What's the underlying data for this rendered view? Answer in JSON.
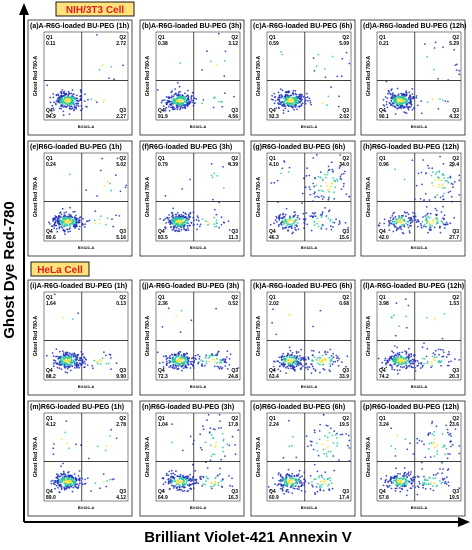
{
  "labels": {
    "y_axis": "Ghost Dye Red-780",
    "x_axis": "Brilliant Violet-421 Annexin V",
    "section_nih": "NIH/3T3 Cell",
    "section_hela": "HeLa Cell",
    "panel_ylabel": "Ghost Red 780-A",
    "panel_xlabel": "BV421-A"
  },
  "colors": {
    "accent_red": "#e11b22",
    "badge_fill": "#ffe37a",
    "badge_border": "#1a1a1a",
    "density_low": "#1f2fbf",
    "density_mid": "#27c8a0",
    "density_high": "#f5e33b"
  },
  "chart_data": [
    {
      "type": "scatter",
      "panel": "(a)",
      "title": "A-R6G-loaded BU-PEG (1h)",
      "quadrants": {
        "Q1": "0.11",
        "Q2": "2.72",
        "Q3": "2.27",
        "Q4": "94.9"
      }
    },
    {
      "type": "scatter",
      "panel": "(b)",
      "title": "A-R6G-loaded BU-PEG (3h)",
      "quadrants": {
        "Q1": "0.38",
        "Q2": "3.12",
        "Q3": "4.56",
        "Q4": "91.9"
      }
    },
    {
      "type": "scatter",
      "panel": "(c)",
      "title": "A-R6G-loaded BU-PEG (6h)",
      "quadrants": {
        "Q1": "0.59",
        "Q2": "5.09",
        "Q3": "2.02",
        "Q4": "92.3"
      }
    },
    {
      "type": "scatter",
      "panel": "(d)",
      "title": "A-R6G-loaded BU-PEG (12h)",
      "quadrants": {
        "Q1": "0.21",
        "Q2": "5.29",
        "Q3": "4.32",
        "Q4": "90.1"
      }
    },
    {
      "type": "scatter",
      "panel": "(e)",
      "title": "R6G-loaded BU-PEG (1h)",
      "quadrants": {
        "Q1": "0.24",
        "Q2": "5.02",
        "Q3": "5.16",
        "Q4": "89.6"
      }
    },
    {
      "type": "scatter",
      "panel": "(f)",
      "title": "R6G-loaded BU-PEG (3h)",
      "quadrants": {
        "Q1": "0.79",
        "Q2": "4.39",
        "Q3": "11.3",
        "Q4": "83.5"
      }
    },
    {
      "type": "scatter",
      "panel": "(g)",
      "title": "R6G-loaded BU-PEG (6h)",
      "quadrants": {
        "Q1": "4.10",
        "Q2": "34.0",
        "Q3": "15.6",
        "Q4": "46.3"
      }
    },
    {
      "type": "scatter",
      "panel": "(h)",
      "title": "R6G-loaded BU-PEG (12h)",
      "quadrants": {
        "Q1": "0.96",
        "Q2": "29.4",
        "Q3": "27.7",
        "Q4": "42.0"
      }
    },
    {
      "type": "scatter",
      "panel": "(i)",
      "title": "A-R6G-loaded BU-PEG (1h)",
      "quadrants": {
        "Q1": "1.64",
        "Q2": "0.13",
        "Q3": "9.90",
        "Q4": "88.2"
      }
    },
    {
      "type": "scatter",
      "panel": "(j)",
      "title": "A-R6G-loaded BU-PEG (3h)",
      "quadrants": {
        "Q1": "2.36",
        "Q2": "0.52",
        "Q3": "24.8",
        "Q4": "72.3"
      }
    },
    {
      "type": "scatter",
      "panel": "(k)",
      "title": "A-R6G-loaded BU-PEG (6h)",
      "quadrants": {
        "Q1": "2.02",
        "Q2": "0.68",
        "Q3": "33.9",
        "Q4": "63.4"
      }
    },
    {
      "type": "scatter",
      "panel": "(l)",
      "title": "A-R6G-loaded BU-PEG (12h)",
      "quadrants": {
        "Q1": "3.98",
        "Q2": "1.53",
        "Q3": "20.3",
        "Q4": "74.2"
      }
    },
    {
      "type": "scatter",
      "panel": "(m)",
      "title": "R6G-loaded BU-PEG (1h)",
      "quadrants": {
        "Q1": "4.12",
        "Q2": "2.78",
        "Q3": "4.12",
        "Q4": "89.0"
      }
    },
    {
      "type": "scatter",
      "panel": "(n)",
      "title": "R6G-loaded BU-PEG (3h)",
      "quadrants": {
        "Q1": "1.04",
        "Q2": "17.8",
        "Q3": "16.3",
        "Q4": "64.9"
      }
    },
    {
      "type": "scatter",
      "panel": "(o)",
      "title": "R6G-loaded BU-PEG (6h)",
      "quadrants": {
        "Q1": "2.24",
        "Q2": "19.5",
        "Q3": "17.4",
        "Q4": "60.9"
      }
    },
    {
      "type": "scatter",
      "panel": "(p)",
      "title": "R6G-loaded BU-PEG (12h)",
      "quadrants": {
        "Q1": "3.24",
        "Q2": "23.6",
        "Q3": "19.5",
        "Q4": "57.8"
      }
    }
  ]
}
